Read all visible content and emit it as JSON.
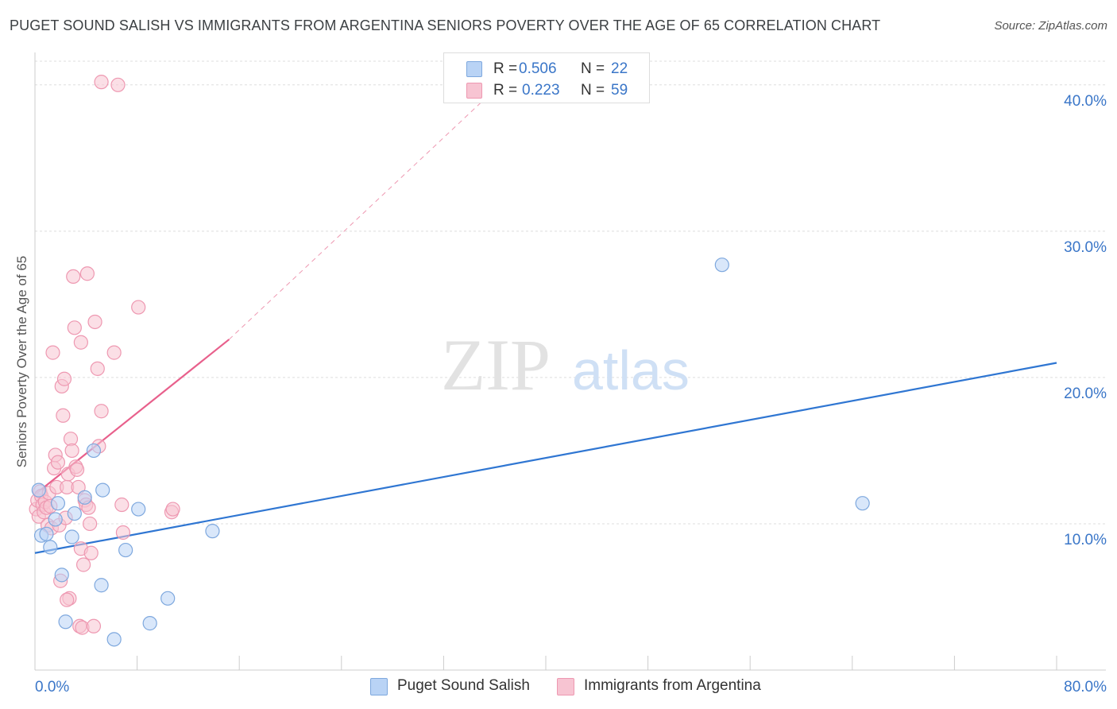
{
  "header": {
    "title": "PUGET SOUND SALISH VS IMMIGRANTS FROM ARGENTINA SENIORS POVERTY OVER THE AGE OF 65 CORRELATION CHART",
    "source": "Source: ZipAtlas.com"
  },
  "watermark": {
    "zip": "ZIP",
    "atlas": "atlas"
  },
  "colors": {
    "blue_fill": "#b9d3f5",
    "blue_stroke": "#7ea8de",
    "blue_line": "#2f76d2",
    "pink_fill": "#f7c4d2",
    "pink_stroke": "#ee98b1",
    "pink_line": "#e8608c",
    "tick_label": "#3a76c8",
    "grid": "#dddddd"
  },
  "legend": {
    "r_label": "R =",
    "n_label": "N =",
    "series1": {
      "r": "0.506",
      "n": "22"
    },
    "series2": {
      "r": "0.223",
      "n": "59"
    }
  },
  "chart_data": {
    "type": "scatter",
    "title": "PUGET SOUND SALISH VS IMMIGRANTS FROM ARGENTINA SENIORS POVERTY OVER THE AGE OF 65 CORRELATION CHART",
    "xlabel": "",
    "ylabel": "Seniors Poverty Over the Age of 65",
    "xlim": [
      0,
      80
    ],
    "ylim": [
      0,
      42
    ],
    "x_tick_labels": {
      "min": "0.0%",
      "max": "80.0%"
    },
    "y_ticks": [
      10,
      20,
      30,
      40
    ],
    "y_tick_labels": [
      "10.0%",
      "20.0%",
      "30.0%",
      "40.0%"
    ],
    "grid": true,
    "legend_position": "top-center",
    "series": [
      {
        "name": "Puget Sound Salish",
        "color": "#7ea8de",
        "r": 0.506,
        "n": 22,
        "trend": {
          "x": [
            0,
            80
          ],
          "y": [
            8.0,
            21.0
          ]
        },
        "points": [
          {
            "x": 0.3,
            "y": 12.3
          },
          {
            "x": 0.5,
            "y": 9.2
          },
          {
            "x": 0.9,
            "y": 9.3
          },
          {
            "x": 1.2,
            "y": 8.4
          },
          {
            "x": 1.6,
            "y": 10.3
          },
          {
            "x": 1.8,
            "y": 11.4
          },
          {
            "x": 2.1,
            "y": 6.5
          },
          {
            "x": 2.4,
            "y": 3.3
          },
          {
            "x": 2.9,
            "y": 9.1
          },
          {
            "x": 3.1,
            "y": 10.7
          },
          {
            "x": 3.9,
            "y": 11.8
          },
          {
            "x": 4.6,
            "y": 15.0
          },
          {
            "x": 5.2,
            "y": 5.8
          },
          {
            "x": 5.3,
            "y": 12.3
          },
          {
            "x": 6.2,
            "y": 2.1
          },
          {
            "x": 7.1,
            "y": 8.2
          },
          {
            "x": 8.1,
            "y": 11.0
          },
          {
            "x": 9.0,
            "y": 3.2
          },
          {
            "x": 10.4,
            "y": 4.9
          },
          {
            "x": 13.9,
            "y": 9.5
          },
          {
            "x": 53.8,
            "y": 27.7
          },
          {
            "x": 64.8,
            "y": 11.4
          }
        ]
      },
      {
        "name": "Immigrants from Argentina",
        "color": "#ee98b1",
        "r": 0.223,
        "n": 59,
        "trend": {
          "x": [
            0,
            15.2
          ],
          "y": [
            12.0,
            22.6
          ]
        },
        "trend_dashed": {
          "x": [
            15.2,
            37.0
          ],
          "y": [
            22.6,
            40.5
          ]
        },
        "points": [
          {
            "x": 0.1,
            "y": 11.0
          },
          {
            "x": 0.2,
            "y": 11.6
          },
          {
            "x": 0.3,
            "y": 10.5
          },
          {
            "x": 0.4,
            "y": 12.2
          },
          {
            "x": 0.5,
            "y": 11.9
          },
          {
            "x": 0.6,
            "y": 11.3
          },
          {
            "x": 0.7,
            "y": 10.8
          },
          {
            "x": 0.8,
            "y": 11.5
          },
          {
            "x": 0.9,
            "y": 11.1
          },
          {
            "x": 1.0,
            "y": 9.9
          },
          {
            "x": 1.1,
            "y": 12.1
          },
          {
            "x": 1.2,
            "y": 11.2
          },
          {
            "x": 1.3,
            "y": 9.7
          },
          {
            "x": 1.4,
            "y": 21.7
          },
          {
            "x": 1.5,
            "y": 13.8
          },
          {
            "x": 1.6,
            "y": 14.7
          },
          {
            "x": 1.7,
            "y": 12.5
          },
          {
            "x": 1.8,
            "y": 14.2
          },
          {
            "x": 1.9,
            "y": 9.9
          },
          {
            "x": 2.0,
            "y": 6.1
          },
          {
            "x": 2.1,
            "y": 19.4
          },
          {
            "x": 2.2,
            "y": 17.4
          },
          {
            "x": 2.3,
            "y": 19.9
          },
          {
            "x": 2.4,
            "y": 10.4
          },
          {
            "x": 2.5,
            "y": 12.5
          },
          {
            "x": 2.6,
            "y": 13.4
          },
          {
            "x": 2.7,
            "y": 4.9
          },
          {
            "x": 2.8,
            "y": 15.8
          },
          {
            "x": 2.9,
            "y": 15.0
          },
          {
            "x": 3.0,
            "y": 26.9
          },
          {
            "x": 3.1,
            "y": 23.4
          },
          {
            "x": 3.2,
            "y": 13.9
          },
          {
            "x": 3.3,
            "y": 13.7
          },
          {
            "x": 3.4,
            "y": 12.5
          },
          {
            "x": 3.5,
            "y": 3.0
          },
          {
            "x": 3.6,
            "y": 8.3
          },
          {
            "x": 3.6,
            "y": 22.4
          },
          {
            "x": 3.7,
            "y": 2.9
          },
          {
            "x": 3.8,
            "y": 7.2
          },
          {
            "x": 3.9,
            "y": 11.6
          },
          {
            "x": 4.0,
            "y": 11.3
          },
          {
            "x": 4.1,
            "y": 27.1
          },
          {
            "x": 4.2,
            "y": 11.1
          },
          {
            "x": 4.3,
            "y": 10.0
          },
          {
            "x": 4.4,
            "y": 8.0
          },
          {
            "x": 4.6,
            "y": 3.0
          },
          {
            "x": 4.7,
            "y": 23.8
          },
          {
            "x": 4.9,
            "y": 20.6
          },
          {
            "x": 5.0,
            "y": 15.3
          },
          {
            "x": 5.2,
            "y": 17.7
          },
          {
            "x": 5.2,
            "y": 40.2
          },
          {
            "x": 6.2,
            "y": 21.7
          },
          {
            "x": 6.5,
            "y": 40.0
          },
          {
            "x": 6.8,
            "y": 11.3
          },
          {
            "x": 6.9,
            "y": 9.4
          },
          {
            "x": 8.1,
            "y": 24.8
          },
          {
            "x": 10.7,
            "y": 10.8
          },
          {
            "x": 10.8,
            "y": 11.0
          },
          {
            "x": 2.5,
            "y": 4.8
          }
        ]
      }
    ]
  }
}
